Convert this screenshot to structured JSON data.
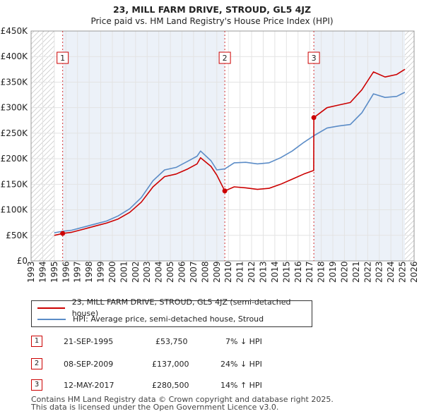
{
  "title": "23, MILL FARM DRIVE, STROUD, GL5 4JZ",
  "subtitle": "Price paid vs. HM Land Registry's House Price Index (HPI)",
  "colors": {
    "property": "#cc0000",
    "hpi": "#5b8cc7",
    "shade": "#dce6f2",
    "hatch": "#b0b0b0"
  },
  "chart_data": {
    "type": "line",
    "xlim": [
      1993,
      2026
    ],
    "ylim": [
      0,
      450000
    ],
    "yticks": [
      {
        "v": 0,
        "label": "£0"
      },
      {
        "v": 50000,
        "label": "£50K"
      },
      {
        "v": 100000,
        "label": "£100K"
      },
      {
        "v": 150000,
        "label": "£150K"
      },
      {
        "v": 200000,
        "label": "£200K"
      },
      {
        "v": 250000,
        "label": "£250K"
      },
      {
        "v": 300000,
        "label": "£300K"
      },
      {
        "v": 350000,
        "label": "£350K"
      },
      {
        "v": 400000,
        "label": "£400K"
      },
      {
        "v": 450000,
        "label": "£450K"
      }
    ],
    "xticks": [
      "1993",
      "1994",
      "1995",
      "1996",
      "1997",
      "1998",
      "1999",
      "2000",
      "2001",
      "2002",
      "2003",
      "2004",
      "2005",
      "2006",
      "2007",
      "2008",
      "2009",
      "2010",
      "2011",
      "2012",
      "2013",
      "2014",
      "2015",
      "2016",
      "2017",
      "2018",
      "2019",
      "2020",
      "2021",
      "2022",
      "2023",
      "2024",
      "2025",
      "2026"
    ],
    "data_start": 1995.0,
    "data_end": 2025.2,
    "series": [
      {
        "name": "23, MILL FARM DRIVE, STROUD, GL5 4JZ (semi-detached house)",
        "x": [
          1995.0,
          1995.72,
          1996.5,
          1997.5,
          1998.5,
          1999.5,
          2000.5,
          2001.5,
          2002.5,
          2003.5,
          2004.5,
          2005.5,
          2006.5,
          2007.3,
          2007.6,
          2008.5,
          2009.0,
          2009.69,
          2010.5,
          2011.5,
          2012.5,
          2013.5,
          2014.5,
          2015.5,
          2016.5,
          2017.35,
          2017.36,
          2018.5,
          2019.5,
          2020.5,
          2021.5,
          2022.5,
          2023.5,
          2024.5,
          2025.2
        ],
        "y": [
          50000,
          53750,
          56000,
          62000,
          68000,
          74000,
          82000,
          95000,
          115000,
          145000,
          165000,
          170000,
          180000,
          190000,
          202000,
          185000,
          168000,
          137000,
          145000,
          143000,
          140000,
          142000,
          150000,
          160000,
          170000,
          177000,
          280500,
          300000,
          305000,
          310000,
          335000,
          370000,
          360000,
          365000,
          375000
        ]
      },
      {
        "name": "HPI: Average price, semi-detached house, Stroud",
        "x": [
          1995.0,
          1995.72,
          1996.5,
          1997.5,
          1998.5,
          1999.5,
          2000.5,
          2001.5,
          2002.5,
          2003.5,
          2004.5,
          2005.5,
          2006.5,
          2007.3,
          2007.6,
          2008.5,
          2009.0,
          2009.69,
          2010.5,
          2011.5,
          2012.5,
          2013.5,
          2014.5,
          2015.5,
          2016.5,
          2017.36,
          2018.5,
          2019.5,
          2020.5,
          2021.5,
          2022.5,
          2023.5,
          2024.5,
          2025.2
        ],
        "y": [
          55000,
          58000,
          60000,
          66000,
          72000,
          78000,
          88000,
          102000,
          124000,
          157000,
          178000,
          183000,
          195000,
          205000,
          215000,
          196000,
          178000,
          180000,
          192000,
          193000,
          190000,
          192000,
          202000,
          215000,
          232000,
          245000,
          260000,
          264000,
          267000,
          290000,
          327000,
          320000,
          322000,
          330000
        ]
      }
    ],
    "sales": [
      {
        "num": "1",
        "x": 1995.72,
        "y": 53750
      },
      {
        "num": "2",
        "x": 2009.69,
        "y": 137000
      },
      {
        "num": "3",
        "x": 2017.36,
        "y": 280500
      }
    ],
    "legend": [
      "23, MILL FARM DRIVE, STROUD, GL5 4JZ (semi-detached house)",
      "HPI: Average price, semi-detached house, Stroud"
    ]
  },
  "transactions": [
    {
      "num": "1",
      "date": "21-SEP-1995",
      "price": "£53,750",
      "hpi": "7% ↓ HPI"
    },
    {
      "num": "2",
      "date": "08-SEP-2009",
      "price": "£137,000",
      "hpi": "24% ↓ HPI"
    },
    {
      "num": "3",
      "date": "12-MAY-2017",
      "price": "£280,500",
      "hpi": "14% ↑ HPI"
    }
  ],
  "footer": {
    "line1": "Contains HM Land Registry data © Crown copyright and database right 2025.",
    "line2": "This data is licensed under the Open Government Licence v3.0."
  }
}
